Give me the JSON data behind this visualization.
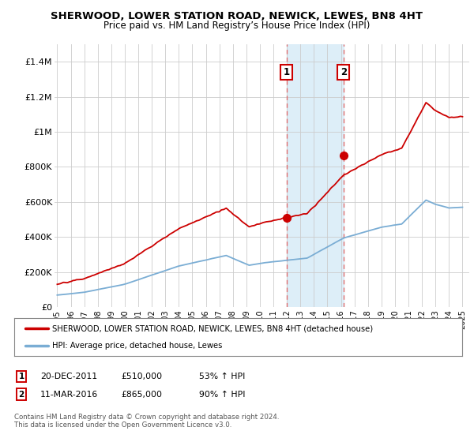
{
  "title": "SHERWOOD, LOWER STATION ROAD, NEWICK, LEWES, BN8 4HT",
  "subtitle": "Price paid vs. HM Land Registry’s House Price Index (HPI)",
  "ylabel_ticks": [
    "£0",
    "£200K",
    "£400K",
    "£600K",
    "£800K",
    "£1M",
    "£1.2M",
    "£1.4M"
  ],
  "ylim": [
    0,
    1500000
  ],
  "xlim_start": 1994.8,
  "xlim_end": 2025.5,
  "transaction1": {
    "date_num": 2011.97,
    "price": 510000,
    "label": "1",
    "date_str": "20-DEC-2011",
    "pct": "53% ↑ HPI"
  },
  "transaction2": {
    "date_num": 2016.19,
    "price": 865000,
    "label": "2",
    "date_str": "11-MAR-2016",
    "pct": "90% ↑ HPI"
  },
  "legend_line1": "SHERWOOD, LOWER STATION ROAD, NEWICK, LEWES, BN8 4HT (detached house)",
  "legend_line2": "HPI: Average price, detached house, Lewes",
  "footnote": "Contains HM Land Registry data © Crown copyright and database right 2024.\nThis data is licensed under the Open Government Licence v3.0.",
  "red_color": "#cc0000",
  "blue_color": "#7aadd4",
  "shade_color": "#ddeef8",
  "background_color": "#ffffff",
  "grid_color": "#cccccc",
  "dash_color": "#e07070"
}
